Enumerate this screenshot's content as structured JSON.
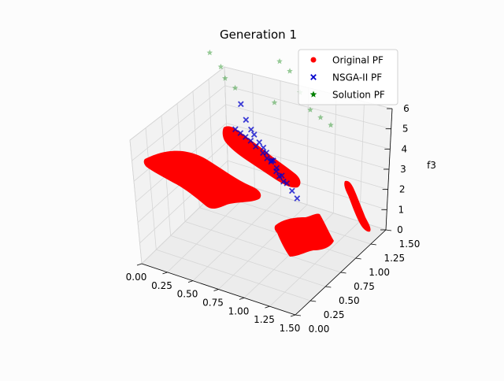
{
  "chart_data": {
    "type": "scatter",
    "title": "Generation 1",
    "xlabel": "",
    "ylabel": "",
    "zlabel": "f3",
    "xlim": [
      0,
      1.5
    ],
    "ylim": [
      0,
      1.5
    ],
    "zlim": [
      0,
      6
    ],
    "x_ticks": [
      "0.00",
      "0.25",
      "0.50",
      "0.75",
      "1.00",
      "1.25",
      "1.50"
    ],
    "y_ticks": [
      "0.00",
      "0.25",
      "0.50",
      "0.75",
      "1.00",
      "1.25",
      "1.50"
    ],
    "z_ticks": [
      "0",
      "1",
      "2",
      "3",
      "4",
      "5",
      "6"
    ],
    "grid": true,
    "legend": "top-right",
    "series": [
      {
        "name": "Original PF",
        "marker": "circle",
        "color": "#ff0000",
        "regions": [
          {
            "x": [
              0.0,
              0.25
            ],
            "y": [
              0.0,
              0.25
            ]
          },
          {
            "x": [
              0.0,
              0.25
            ],
            "y": [
              0.6,
              0.85
            ]
          },
          {
            "x": [
              0.6,
              0.85
            ],
            "y": [
              0.0,
              0.25
            ]
          },
          {
            "x": [
              0.0,
              0.1
            ],
            "y": [
              1.25,
              1.5
            ]
          }
        ]
      },
      {
        "name": "NSGA-II PF",
        "marker": "x",
        "color": "#0000cc",
        "points": [
          [
            0.35,
            1.0,
            4.6
          ],
          [
            0.4,
            1.0,
            4.5
          ],
          [
            0.45,
            1.0,
            4.4
          ],
          [
            0.5,
            1.0,
            4.3
          ],
          [
            0.55,
            1.0,
            4.1
          ],
          [
            0.62,
            1.0,
            3.9
          ],
          [
            0.66,
            1.0,
            3.7
          ],
          [
            0.7,
            1.0,
            3.6
          ],
          [
            0.72,
            1.0,
            3.7
          ],
          [
            0.75,
            1.0,
            3.2
          ],
          [
            0.78,
            1.0,
            3.0
          ],
          [
            0.82,
            1.0,
            2.8
          ],
          [
            0.15,
            1.45,
            4.2
          ],
          [
            0.2,
            1.45,
            3.5
          ],
          [
            0.25,
            1.45,
            3.1
          ],
          [
            0.28,
            1.45,
            2.9
          ],
          [
            0.33,
            1.45,
            2.6
          ],
          [
            0.37,
            1.45,
            2.4
          ],
          [
            0.4,
            1.45,
            2.2
          ],
          [
            0.45,
            1.45,
            1.9
          ],
          [
            0.5,
            1.45,
            1.6
          ],
          [
            0.55,
            1.45,
            1.3
          ],
          [
            0.6,
            1.45,
            1.0
          ],
          [
            0.65,
            1.45,
            0.7
          ],
          [
            0.7,
            1.45,
            0.4
          ]
        ]
      },
      {
        "name": "Solution PF",
        "marker": "star",
        "color": "#008000",
        "points": [
          [
            0.1,
            1.0,
            8.0
          ],
          [
            0.18,
            1.05,
            7.3
          ],
          [
            0.25,
            1.0,
            7.0
          ],
          [
            0.32,
            1.05,
            6.5
          ],
          [
            0.5,
            1.5,
            6.9
          ],
          [
            0.6,
            1.5,
            6.6
          ],
          [
            0.7,
            1.5,
            5.7
          ],
          [
            0.8,
            1.5,
            5.0
          ],
          [
            0.9,
            1.5,
            4.8
          ],
          [
            1.0,
            1.5,
            4.6
          ],
          [
            0.45,
            1.5,
            4.7
          ]
        ]
      }
    ]
  }
}
